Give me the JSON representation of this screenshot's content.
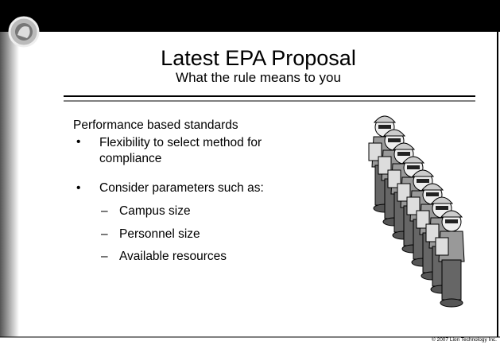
{
  "header": {
    "title": "Latest EPA Proposal",
    "subtitle": "What the rule means to you"
  },
  "content": {
    "intro": "Performance based standards",
    "bullets": [
      {
        "lines": [
          "Flexibility to select method for",
          "compliance"
        ]
      },
      {
        "text": "Consider parameters such as:",
        "items": [
          "Campus size",
          "Personnel size",
          "Available resources"
        ]
      }
    ]
  },
  "footer": {
    "copyright": "© 2007 Lion Technology Inc."
  }
}
